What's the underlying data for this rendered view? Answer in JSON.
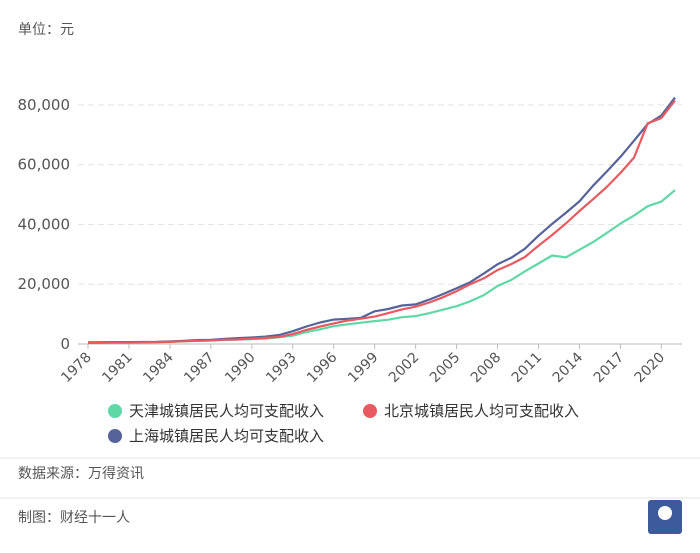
{
  "chart_data": {
    "type": "line",
    "unit_label": "单位：元",
    "source": "数据来源：万得资讯",
    "credit": "制图：财经十一人",
    "x": [
      1978,
      1979,
      1980,
      1981,
      1982,
      1983,
      1984,
      1985,
      1986,
      1987,
      1988,
      1989,
      1990,
      1991,
      1992,
      1993,
      1994,
      1995,
      1996,
      1997,
      1998,
      1999,
      2000,
      2001,
      2002,
      2003,
      2004,
      2005,
      2006,
      2007,
      2008,
      2009,
      2010,
      2011,
      2012,
      2013,
      2014,
      2015,
      2016,
      2017,
      2018,
      2019,
      2020,
      2021
    ],
    "series": [
      {
        "name": "天津城镇居民人均可支配收入",
        "color": "#5fd8a6",
        "values": [
          388,
          440,
          526,
          553,
          589,
          629,
          770,
          932,
          1059,
          1196,
          1360,
          1506,
          1638,
          1841,
          2238,
          2769,
          3982,
          4930,
          5968,
          6608,
          7111,
          7650,
          8141,
          8959,
          9338,
          10313,
          11467,
          12639,
          14283,
          16357,
          19423,
          21402,
          24293,
          26921,
          29626,
          28980,
          31506,
          34101,
          37110,
          40278,
          42976,
          46119,
          47659,
          51486
        ]
      },
      {
        "name": "北京城镇居民人均可支配收入",
        "color": "#e85a5f",
        "values": [
          365,
          415,
          501,
          514,
          561,
          590,
          693,
          908,
          1068,
          1182,
          1437,
          1520,
          1787,
          2040,
          2364,
          3296,
          4731,
          5868,
          6886,
          7813,
          8472,
          9183,
          10350,
          11578,
          12464,
          13883,
          15638,
          17653,
          19978,
          21989,
          24725,
          26738,
          29073,
          32903,
          36469,
          40321,
          44489,
          48458,
          52530,
          57230,
          62361,
          73849,
          75602,
          81518
        ]
      },
      {
        "name": "上海城镇居民人均可支配收入",
        "color": "#56639a",
        "values": [
          560,
          588,
          637,
          637,
          659,
          686,
          834,
          1075,
          1290,
          1372,
          1723,
          1976,
          2182,
          2486,
          3027,
          4277,
          5868,
          7191,
          8178,
          8439,
          8773,
          10932,
          11718,
          12883,
          13250,
          14867,
          16683,
          18645,
          20668,
          23623,
          26675,
          28838,
          31838,
          36230,
          40188,
          43851,
          47710,
          52962,
          57692,
          62596,
          68034,
          73615,
          76437,
          82429
        ]
      }
    ],
    "xlim": [
      1978,
      2021
    ],
    "xticks": [
      1978,
      1981,
      1984,
      1987,
      1990,
      1993,
      1996,
      1999,
      2002,
      2005,
      2008,
      2011,
      2014,
      2017,
      2020
    ],
    "ylim": [
      0,
      88000
    ],
    "yticks": [
      0,
      {
        "value": 20000,
        "label": "20,000"
      },
      {
        "value": 40000,
        "label": "40,000"
      },
      {
        "value": 60000,
        "label": "60,000"
      },
      {
        "value": 80000,
        "label": "80,000"
      }
    ],
    "grid": true
  }
}
